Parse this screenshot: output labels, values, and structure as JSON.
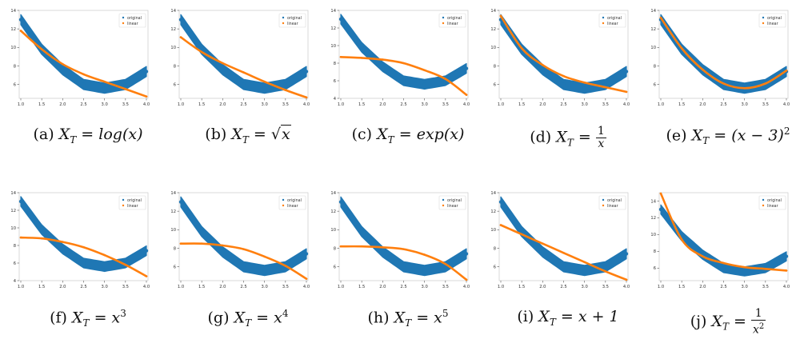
{
  "colors": {
    "original": "#1f77b4",
    "linear": "#ff7f0e"
  },
  "legend": {
    "original": "original",
    "linear": "linear"
  },
  "captions": [
    {
      "label": "(a)",
      "pre": "X",
      "sub": "T",
      "eq": "=",
      "expr": "log(x)"
    },
    {
      "label": "(b)",
      "pre": "X",
      "sub": "T",
      "eq": "=",
      "sqrt": "√",
      "rad": "x"
    },
    {
      "label": "(c)",
      "pre": "X",
      "sub": "T",
      "eq": "=",
      "expr": "exp(x)"
    },
    {
      "label": "(d)",
      "pre": "X",
      "sub": "T",
      "eq": "=",
      "num": "1",
      "den": "x"
    },
    {
      "label": "(e)",
      "pre": "X",
      "sub": "T",
      "eq": "=",
      "expr": "(x − 3)",
      "sup": "2"
    },
    {
      "label": "(f)",
      "pre": "X",
      "sub": "T",
      "eq": "=",
      "expr": "x",
      "sup": "3"
    },
    {
      "label": "(g)",
      "pre": "X",
      "sub": "T",
      "eq": "=",
      "expr": "x",
      "sup": "4"
    },
    {
      "label": "(h)",
      "pre": "X",
      "sub": "T",
      "eq": "=",
      "expr": "x",
      "sup": "5"
    },
    {
      "label": "(i)",
      "pre": "X",
      "sub": "T",
      "eq": "=",
      "expr": "x + 1"
    },
    {
      "label": "(j)",
      "pre": "X",
      "sub": "T",
      "eq": "=",
      "num": "1",
      "den": "x",
      "densup": "2"
    }
  ],
  "chart_data": [
    {
      "type": "scatter",
      "xlim": [
        1.0,
        4.0
      ],
      "ylim": [
        4.5,
        14
      ],
      "xticks": [
        "1.0",
        "1.5",
        "2.0",
        "2.5",
        "3.0",
        "3.5",
        "4.0"
      ],
      "yticks": [
        "6",
        "8",
        "10",
        "12",
        "14"
      ],
      "series": [
        {
          "name": "original",
          "x": [
            1.0,
            1.5,
            2.0,
            2.5,
            3.0,
            3.5,
            4.0
          ],
          "y": [
            13.0,
            9.8,
            7.6,
            6.0,
            5.6,
            6.0,
            7.4
          ]
        },
        {
          "name": "linear",
          "x": [
            1.0,
            1.5,
            2.0,
            2.5,
            3.0,
            3.5,
            4.0
          ],
          "y": [
            11.8,
            9.8,
            8.2,
            7.1,
            6.3,
            5.5,
            4.7
          ]
        }
      ]
    },
    {
      "type": "scatter",
      "xlim": [
        1.0,
        4.0
      ],
      "ylim": [
        4.5,
        14
      ],
      "xticks": [
        "1.0",
        "1.5",
        "2.0",
        "2.5",
        "3.0",
        "3.5",
        "4.0"
      ],
      "yticks": [
        "6",
        "8",
        "10",
        "12",
        "14"
      ],
      "series": [
        {
          "name": "original",
          "x": [
            1.0,
            1.5,
            2.0,
            2.5,
            3.0,
            3.5,
            4.0
          ],
          "y": [
            13.0,
            9.8,
            7.6,
            6.0,
            5.6,
            6.0,
            7.4
          ]
        },
        {
          "name": "linear",
          "x": [
            1.0,
            1.5,
            2.0,
            2.5,
            3.0,
            3.5,
            4.0
          ],
          "y": [
            11.1,
            9.5,
            8.3,
            7.3,
            6.3,
            5.4,
            4.6
          ]
        }
      ]
    },
    {
      "type": "scatter",
      "xlim": [
        1.0,
        4.0
      ],
      "ylim": [
        4,
        14
      ],
      "xticks": [
        "1.0",
        "1.5",
        "2.0",
        "2.5",
        "3.0",
        "3.5",
        "4.0"
      ],
      "yticks": [
        "4",
        "6",
        "8",
        "10",
        "12",
        "14"
      ],
      "series": [
        {
          "name": "original",
          "x": [
            1.0,
            1.5,
            2.0,
            2.5,
            3.0,
            3.5,
            4.0
          ],
          "y": [
            13.0,
            9.8,
            7.6,
            6.0,
            5.6,
            6.0,
            7.4
          ]
        },
        {
          "name": "linear",
          "x": [
            1.0,
            1.5,
            2.0,
            2.5,
            3.0,
            3.5,
            4.0
          ],
          "y": [
            8.7,
            8.6,
            8.4,
            8.0,
            7.2,
            6.2,
            4.4
          ]
        }
      ]
    },
    {
      "type": "scatter",
      "xlim": [
        1.0,
        4.0
      ],
      "ylim": [
        4.5,
        14
      ],
      "xticks": [
        "1.0",
        "1.5",
        "2.0",
        "2.5",
        "3.0",
        "3.5",
        "4.0"
      ],
      "yticks": [
        "6",
        "8",
        "10",
        "12",
        "14"
      ],
      "series": [
        {
          "name": "original",
          "x": [
            1.0,
            1.5,
            2.0,
            2.5,
            3.0,
            3.5,
            4.0
          ],
          "y": [
            13.0,
            9.8,
            7.6,
            6.0,
            5.6,
            6.0,
            7.4
          ]
        },
        {
          "name": "linear",
          "x": [
            1.0,
            1.5,
            2.0,
            2.5,
            3.0,
            3.5,
            4.0
          ],
          "y": [
            13.4,
            9.9,
            8.1,
            6.9,
            6.2,
            5.7,
            5.2
          ]
        }
      ]
    },
    {
      "type": "scatter",
      "xlim": [
        1.0,
        4.0
      ],
      "ylim": [
        4.5,
        14
      ],
      "xticks": [
        "1.0",
        "1.5",
        "2.0",
        "2.5",
        "3.0",
        "3.5",
        "4.0"
      ],
      "yticks": [
        "6",
        "8",
        "10",
        "12",
        "14"
      ],
      "series": [
        {
          "name": "original",
          "x": [
            1.0,
            1.5,
            2.0,
            2.5,
            3.0,
            3.5,
            4.0
          ],
          "y": [
            13.0,
            9.8,
            7.6,
            6.0,
            5.6,
            6.0,
            7.4
          ]
        },
        {
          "name": "linear",
          "x": [
            1.0,
            1.5,
            2.0,
            2.5,
            3.0,
            3.5,
            4.0
          ],
          "y": [
            13.2,
            9.9,
            7.6,
            6.1,
            5.6,
            6.1,
            7.5
          ]
        }
      ]
    },
    {
      "type": "scatter",
      "xlim": [
        1.0,
        4.0
      ],
      "ylim": [
        4,
        14
      ],
      "xticks": [
        "1.0",
        "1.5",
        "2.0",
        "2.5",
        "3.0",
        "3.5",
        "4.0"
      ],
      "yticks": [
        "4",
        "6",
        "8",
        "10",
        "12",
        "14"
      ],
      "series": [
        {
          "name": "original",
          "x": [
            1.0,
            1.5,
            2.0,
            2.5,
            3.0,
            3.5,
            4.0
          ],
          "y": [
            13.0,
            9.8,
            7.6,
            6.0,
            5.6,
            6.0,
            7.4
          ]
        },
        {
          "name": "linear",
          "x": [
            1.0,
            1.5,
            2.0,
            2.5,
            3.0,
            3.5,
            4.0
          ],
          "y": [
            8.9,
            8.8,
            8.4,
            7.8,
            6.9,
            5.8,
            4.5
          ]
        }
      ]
    },
    {
      "type": "scatter",
      "xlim": [
        1.0,
        4.0
      ],
      "ylim": [
        4.5,
        14
      ],
      "xticks": [
        "1.0",
        "1.5",
        "2.0",
        "2.5",
        "3.0",
        "3.5",
        "4.0"
      ],
      "yticks": [
        "6",
        "8",
        "10",
        "12",
        "14"
      ],
      "series": [
        {
          "name": "original",
          "x": [
            1.0,
            1.5,
            2.0,
            2.5,
            3.0,
            3.5,
            4.0
          ],
          "y": [
            13.0,
            9.8,
            7.6,
            6.0,
            5.6,
            6.0,
            7.4
          ]
        },
        {
          "name": "linear",
          "x": [
            1.0,
            1.5,
            2.0,
            2.5,
            3.0,
            3.5,
            4.0
          ],
          "y": [
            8.5,
            8.5,
            8.3,
            7.9,
            7.1,
            6.1,
            4.7
          ]
        }
      ]
    },
    {
      "type": "scatter",
      "xlim": [
        1.0,
        4.0
      ],
      "ylim": [
        4.5,
        14
      ],
      "xticks": [
        "1.0",
        "1.5",
        "2.0",
        "2.5",
        "3.0",
        "3.5",
        "4.0"
      ],
      "yticks": [
        "6",
        "8",
        "10",
        "12",
        "14"
      ],
      "series": [
        {
          "name": "original",
          "x": [
            1.0,
            1.5,
            2.0,
            2.5,
            3.0,
            3.5,
            4.0
          ],
          "y": [
            13.0,
            9.8,
            7.6,
            6.0,
            5.6,
            6.0,
            7.4
          ]
        },
        {
          "name": "linear",
          "x": [
            1.0,
            1.5,
            2.0,
            2.5,
            3.0,
            3.5,
            4.0
          ],
          "y": [
            8.2,
            8.2,
            8.1,
            7.9,
            7.3,
            6.3,
            4.6
          ]
        }
      ]
    },
    {
      "type": "scatter",
      "xlim": [
        1.0,
        4.0
      ],
      "ylim": [
        4.5,
        14
      ],
      "xticks": [
        "1.0",
        "1.5",
        "2.0",
        "2.5",
        "3.0",
        "3.5",
        "4.0"
      ],
      "yticks": [
        "6",
        "8",
        "10",
        "12",
        "14"
      ],
      "series": [
        {
          "name": "original",
          "x": [
            1.0,
            1.5,
            2.0,
            2.5,
            3.0,
            3.5,
            4.0
          ],
          "y": [
            13.0,
            9.8,
            7.6,
            6.0,
            5.6,
            6.0,
            7.4
          ]
        },
        {
          "name": "linear",
          "x": [
            1.0,
            1.5,
            2.0,
            2.5,
            3.0,
            3.5,
            4.0
          ],
          "y": [
            10.5,
            9.5,
            8.5,
            7.5,
            6.5,
            5.5,
            4.6
          ]
        }
      ]
    },
    {
      "type": "scatter",
      "xlim": [
        1.0,
        4.0
      ],
      "ylim": [
        4.5,
        15
      ],
      "xticks": [
        "1.0",
        "1.5",
        "2.0",
        "2.5",
        "3.0",
        "3.5",
        "4.0"
      ],
      "yticks": [
        "6",
        "8",
        "10",
        "12",
        "14"
      ],
      "series": [
        {
          "name": "original",
          "x": [
            1.0,
            1.5,
            2.0,
            2.5,
            3.0,
            3.5,
            4.0
          ],
          "y": [
            13.0,
            9.8,
            7.6,
            6.0,
            5.6,
            6.0,
            7.4
          ]
        },
        {
          "name": "linear",
          "x": [
            1.0,
            1.5,
            2.0,
            2.5,
            3.0,
            3.5,
            4.0
          ],
          "y": [
            14.9,
            9.4,
            7.4,
            6.6,
            6.1,
            5.9,
            5.7
          ]
        }
      ]
    }
  ]
}
